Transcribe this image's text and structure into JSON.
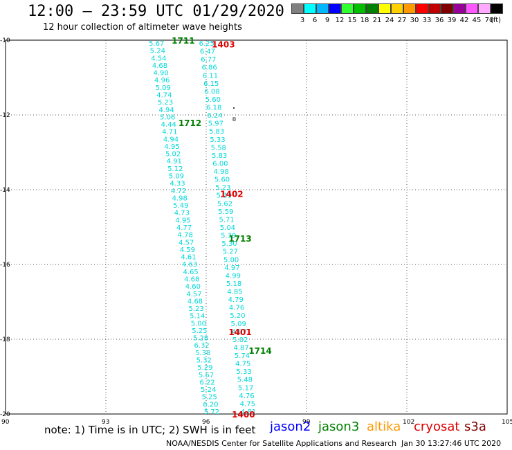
{
  "header": {
    "title": "12:00 – 23:59 UTC 01/29/2020",
    "subtitle": "12 hour collection of altimeter wave heights"
  },
  "legend": {
    "unit": "(ft)",
    "bins": [
      {
        "label": "3",
        "color": "#808080"
      },
      {
        "label": "6",
        "color": "#00ffff"
      },
      {
        "label": "9",
        "color": "#00b8ff"
      },
      {
        "label": "12",
        "color": "#0000ff"
      },
      {
        "label": "15",
        "color": "#30ff30"
      },
      {
        "label": "18",
        "color": "#00c000"
      },
      {
        "label": "21",
        "color": "#008000"
      },
      {
        "label": "24",
        "color": "#ffff00"
      },
      {
        "label": "27",
        "color": "#ffd000"
      },
      {
        "label": "30",
        "color": "#ff9900"
      },
      {
        "label": "33",
        "color": "#ff0000"
      },
      {
        "label": "36",
        "color": "#c00000"
      },
      {
        "label": "39",
        "color": "#800000"
      },
      {
        "label": "42",
        "color": "#990099"
      },
      {
        "label": "45",
        "color": "#ff55ff"
      },
      {
        "label": "70",
        "color": "#ffaaff"
      },
      {
        "label": "",
        "color": "#000000"
      }
    ]
  },
  "map": {
    "x_ticks": [
      "90",
      "93",
      "96",
      "99",
      "102",
      "105"
    ],
    "y_ticks": [
      "-10",
      "-12",
      "-14",
      "-16",
      "-18",
      "-20"
    ],
    "x_range": [
      90,
      105
    ],
    "y_range": [
      -20,
      -10
    ],
    "track_color": "#00d8d8",
    "tracks": [
      {
        "name": "west",
        "start_lon": 94.45,
        "end_lon": 96.1,
        "labels": [
          "5.67",
          "5.24",
          "4.54",
          "4.68",
          "4.90",
          "4.96",
          "5.09",
          "4.74",
          "5.23",
          "4.94",
          "5.06",
          "4.44",
          "4.71",
          "4.94",
          "4.95",
          "5.02",
          "4.91",
          "5.12",
          "5.09",
          "4.33",
          "4.72",
          "4.98",
          "5.49",
          "4.73",
          "4.95",
          "4.77",
          "4.78",
          "4.57",
          "4.59",
          "4.61",
          "4.63",
          "4.65",
          "4.68",
          "4.60",
          "4.57",
          "4.68",
          "5.23",
          "5.14",
          "5.00",
          "5.25",
          "5.28",
          "6.32",
          "5.38",
          "5.32",
          "5.29",
          "5.67",
          "6.22",
          "5.24",
          "5.25",
          "6.20",
          "5.72"
        ]
      },
      {
        "name": "east",
        "start_lon": 95.95,
        "end_lon": 97.2,
        "labels": [
          "6.25",
          "6.47",
          "6.77",
          "6.86",
          "6.11",
          "6.15",
          "6.08",
          "5.60",
          "6.18",
          "6.24",
          "5.97",
          "5.83",
          "5.33",
          "5.58",
          "5.83",
          "6.00",
          "4.98",
          "5.60",
          "5.23",
          "5.33",
          "5.62",
          "5.59",
          "5.71",
          "5.04",
          "5.39",
          "5.30",
          "5.27",
          "5.00",
          "4.97",
          "4.99",
          "5.18",
          "4.85",
          "4.79",
          "4.76",
          "5.20",
          "5.09",
          "4.97",
          "5.02",
          "4.87",
          "5.74",
          "4.75",
          "5.33",
          "5.48",
          "5.17",
          "4.76",
          "4.75",
          "4.81"
        ]
      }
    ],
    "time_labels": [
      {
        "text": "1711",
        "color": "#008000",
        "lon": 95.3,
        "lat": -10.0
      },
      {
        "text": "1403",
        "color": "#dd0000",
        "lon": 96.5,
        "lat": -10.1
      },
      {
        "text": "1712",
        "color": "#008000",
        "lon": 95.5,
        "lat": -12.2
      },
      {
        "text": "1402",
        "color": "#dd0000",
        "lon": 96.75,
        "lat": -14.1
      },
      {
        "text": "1713",
        "color": "#008000",
        "lon": 97.0,
        "lat": -15.3
      },
      {
        "text": "1401",
        "color": "#dd0000",
        "lon": 97.0,
        "lat": -17.8
      },
      {
        "text": "1714",
        "color": "#008000",
        "lon": 97.6,
        "lat": -18.3
      },
      {
        "text": "1400",
        "color": "#dd0000",
        "lon": 97.1,
        "lat": -20.0
      }
    ]
  },
  "footer": {
    "note": "note: 1) Time is in UTC; 2) SWH is in feet",
    "satellites": [
      {
        "name": "jason2",
        "color": "#0000ff"
      },
      {
        "name": "jason3",
        "color": "#008000"
      },
      {
        "name": "altika",
        "color": "#ff9900"
      },
      {
        "name": "cryosat",
        "color": "#dd0000"
      },
      {
        "name": "s3a",
        "color": "#800000"
      }
    ],
    "credit": "NOAA/NESDIS Center for Satellite Applications and Research",
    "timestamp": "Jan 30 13:27:46 UTC 2020"
  }
}
